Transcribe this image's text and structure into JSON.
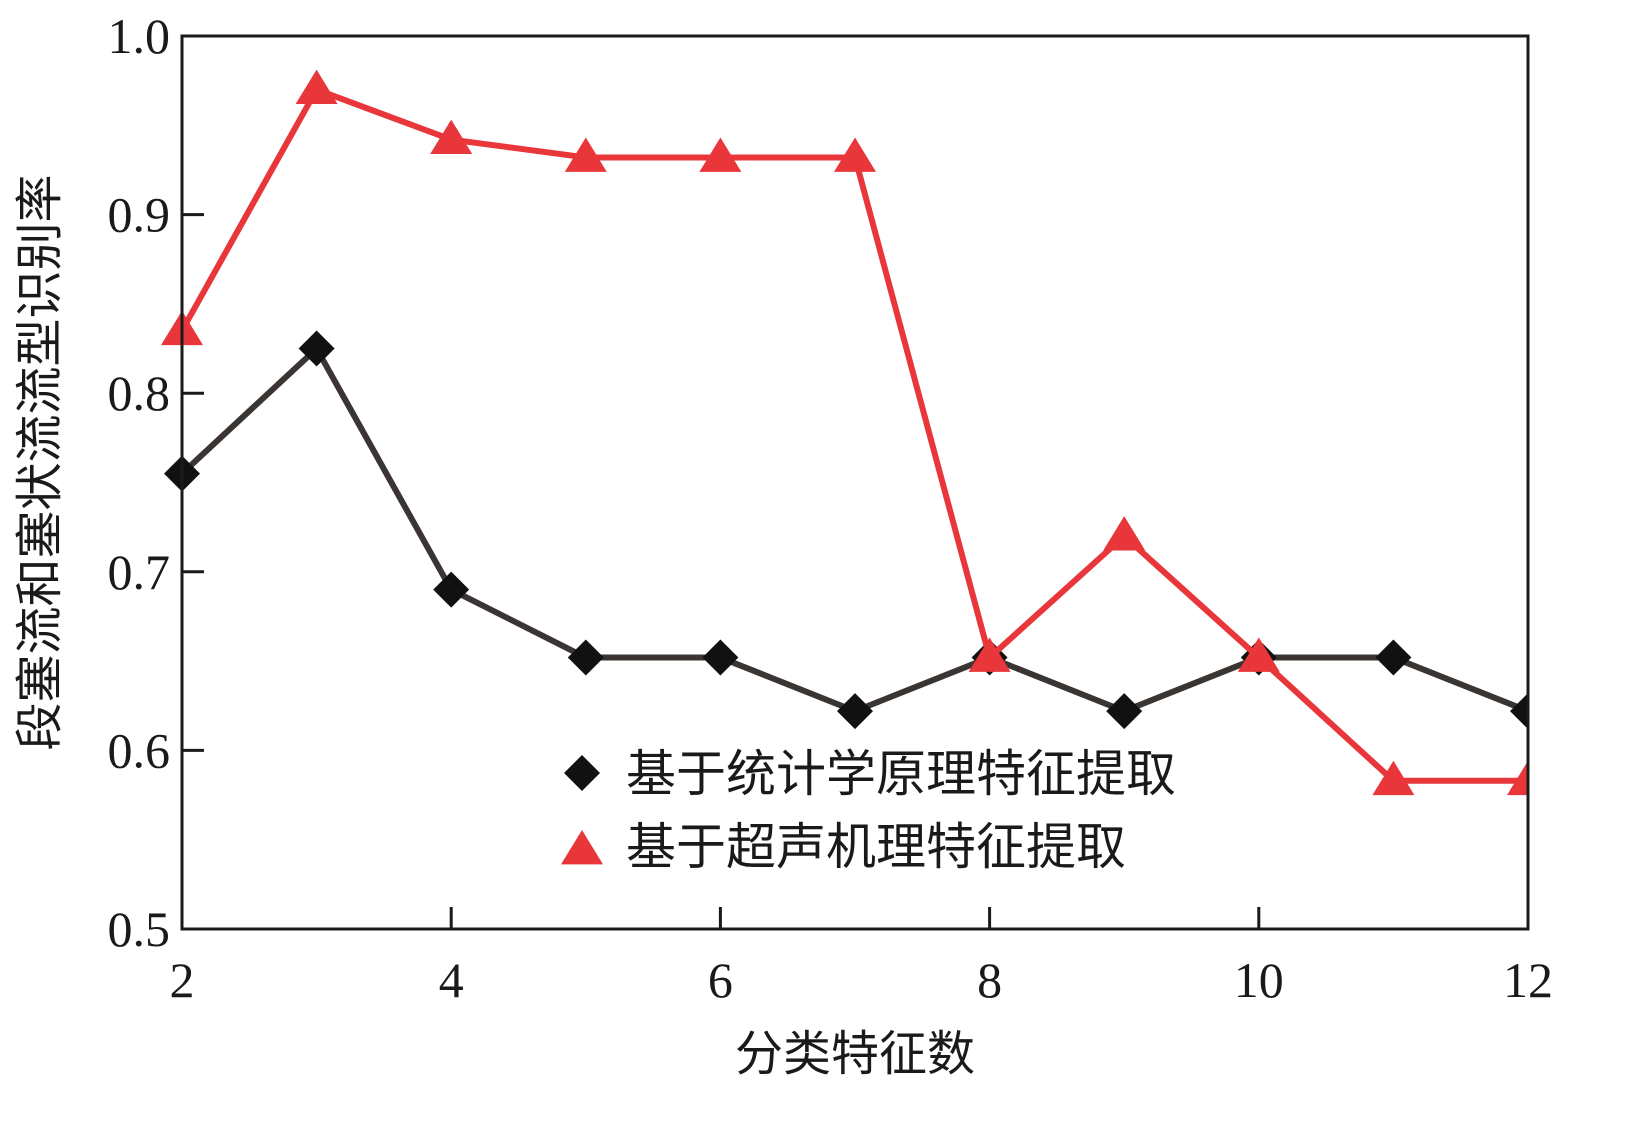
{
  "chart_data": {
    "type": "line",
    "xlabel": "分类特征数",
    "ylabel": "段塞流和塞状流流型识别率",
    "xlim": [
      2,
      12
    ],
    "ylim": [
      0.5,
      1.0
    ],
    "x_ticks": [
      2,
      4,
      6,
      8,
      10,
      12
    ],
    "y_ticks": [
      "0.5",
      "0.6",
      "0.7",
      "0.8",
      "0.9",
      "1.0"
    ],
    "grid": false,
    "legend_position": "bottom-center",
    "x": [
      2,
      3,
      4,
      5,
      6,
      7,
      8,
      9,
      10,
      11,
      12
    ],
    "series": [
      {
        "name": "基于统计学原理特征提取",
        "marker": "diamond",
        "color": "#3a3533",
        "marker_color": "#111111",
        "values": [
          0.755,
          0.825,
          0.69,
          0.652,
          0.652,
          0.622,
          0.652,
          0.622,
          0.652,
          0.652,
          0.622
        ]
      },
      {
        "name": "基于超声机理特征提取",
        "marker": "triangle",
        "color": "#e8363a",
        "marker_color": "#e8363a",
        "values": [
          0.835,
          0.97,
          0.942,
          0.932,
          0.932,
          0.932,
          0.652,
          0.72,
          0.652,
          0.583,
          0.583
        ]
      }
    ]
  }
}
